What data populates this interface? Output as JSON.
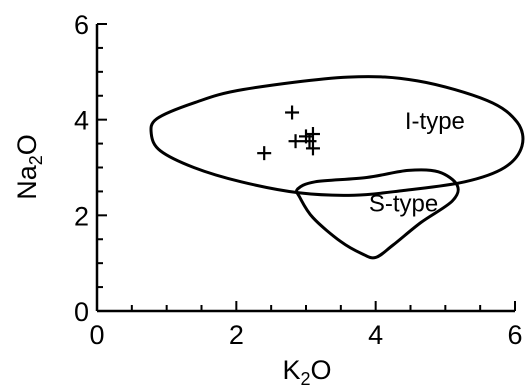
{
  "chart_data": {
    "type": "scatter",
    "title": "",
    "xlabel": {
      "main": "K",
      "sub": "2",
      "tail": "O"
    },
    "ylabel": {
      "main": "Na",
      "sub": "2",
      "tail": "O"
    },
    "xlim": [
      0,
      6
    ],
    "ylim": [
      0,
      6
    ],
    "xticks": [
      0,
      2,
      4,
      6
    ],
    "yticks": [
      0,
      2,
      4,
      6
    ],
    "x_minor_step": 0.5,
    "y_minor_step": 0.5,
    "grid": false,
    "legend": "none",
    "marker": "plus",
    "points": [
      {
        "x": 2.8,
        "y": 4.15
      },
      {
        "x": 2.4,
        "y": 3.3
      },
      {
        "x": 2.85,
        "y": 3.55
      },
      {
        "x": 3.0,
        "y": 3.65
      },
      {
        "x": 3.1,
        "y": 3.7
      },
      {
        "x": 3.05,
        "y": 3.55
      },
      {
        "x": 3.1,
        "y": 3.4
      }
    ],
    "regions": [
      {
        "label": "I-type",
        "label_at": {
          "x": 4.85,
          "y": 3.8
        },
        "outline": [
          [
            0.78,
            3.7
          ],
          [
            0.91,
            3.35
          ],
          [
            1.39,
            3.0
          ],
          [
            2.07,
            2.7
          ],
          [
            2.91,
            2.47
          ],
          [
            3.69,
            2.42
          ],
          [
            4.4,
            2.52
          ],
          [
            5.28,
            2.7
          ],
          [
            5.85,
            3.0
          ],
          [
            6.1,
            3.45
          ],
          [
            6.03,
            3.95
          ],
          [
            5.6,
            4.4
          ],
          [
            4.6,
            4.81
          ],
          [
            3.6,
            4.89
          ],
          [
            2.1,
            4.63
          ],
          [
            1.39,
            4.35
          ],
          [
            0.86,
            4.02
          ]
        ]
      },
      {
        "label": "S-type",
        "label_at": {
          "x": 4.4,
          "y": 2.08
        },
        "outline": [
          [
            2.91,
            2.38
          ],
          [
            3.1,
            1.95
          ],
          [
            3.5,
            1.45
          ],
          [
            3.8,
            1.2
          ],
          [
            4.0,
            1.12
          ],
          [
            4.25,
            1.38
          ],
          [
            4.65,
            1.85
          ],
          [
            5.1,
            2.3
          ],
          [
            5.17,
            2.63
          ],
          [
            4.9,
            2.91
          ],
          [
            4.47,
            2.94
          ],
          [
            3.87,
            2.79
          ],
          [
            3.13,
            2.7
          ],
          [
            2.88,
            2.55
          ]
        ]
      }
    ]
  }
}
